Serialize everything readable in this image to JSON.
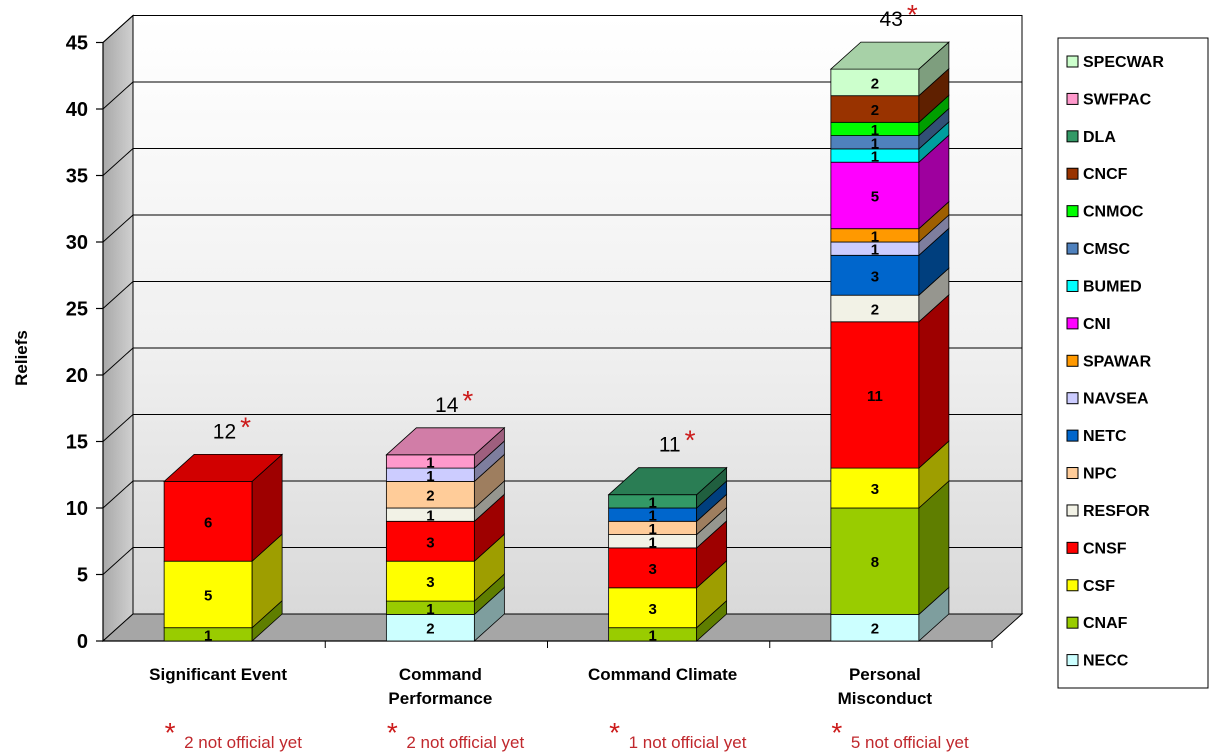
{
  "chart_data": {
    "type": "bar",
    "stacked": true,
    "three_d": true,
    "ylabel": "Reliefs",
    "ylim": [
      0,
      45
    ],
    "yticks": [
      0,
      5,
      10,
      15,
      20,
      25,
      30,
      35,
      40,
      45
    ],
    "grid": true,
    "legend_position": "right",
    "categories": [
      [
        "Significant Event"
      ],
      [
        "Command",
        "Performance"
      ],
      [
        "Command Climate"
      ],
      [
        "Personal",
        "Misconduct"
      ]
    ],
    "totals": [
      12,
      14,
      11,
      43
    ],
    "series": [
      {
        "name": "NECC",
        "color": "#ccffff",
        "values": [
          0,
          2,
          0,
          2
        ]
      },
      {
        "name": "CNAF",
        "color": "#99cc00",
        "values": [
          1,
          1,
          1,
          8
        ]
      },
      {
        "name": "CSF",
        "color": "#ffff00",
        "values": [
          5,
          3,
          3,
          3
        ]
      },
      {
        "name": "CNSF",
        "color": "#ff0000",
        "values": [
          6,
          3,
          3,
          11
        ]
      },
      {
        "name": "RESFOR",
        "color": "#f2f2e6",
        "values": [
          0,
          1,
          1,
          2
        ]
      },
      {
        "name": "NPC",
        "color": "#ffcc99",
        "values": [
          0,
          2,
          1,
          0
        ]
      },
      {
        "name": "NETC",
        "color": "#0066cc",
        "values": [
          0,
          0,
          1,
          3
        ]
      },
      {
        "name": "NAVSEA",
        "color": "#ccccff",
        "values": [
          0,
          1,
          0,
          1
        ]
      },
      {
        "name": "SPAWAR",
        "color": "#ff9900",
        "values": [
          0,
          0,
          0,
          1
        ]
      },
      {
        "name": "CNI",
        "color": "#ff00ff",
        "values": [
          0,
          0,
          0,
          5
        ]
      },
      {
        "name": "BUMED",
        "color": "#00ffff",
        "values": [
          0,
          0,
          0,
          1
        ]
      },
      {
        "name": "CMSC",
        "color": "#4f81bd",
        "values": [
          0,
          0,
          0,
          1
        ]
      },
      {
        "name": "CNMOC",
        "color": "#00ff00",
        "values": [
          0,
          0,
          0,
          1
        ]
      },
      {
        "name": "CNCF",
        "color": "#993300",
        "values": [
          0,
          0,
          0,
          2
        ]
      },
      {
        "name": "DLA",
        "color": "#339966",
        "values": [
          0,
          0,
          1,
          0
        ]
      },
      {
        "name": "SWFPAC",
        "color": "#ff99cc",
        "values": [
          0,
          1,
          0,
          0
        ]
      },
      {
        "name": "SPECWAR",
        "color": "#ccffcc",
        "values": [
          0,
          0,
          0,
          2
        ]
      }
    ],
    "notes": [
      "2 not official yet",
      "2  not official yet",
      "1 not official yet",
      "5 not official yet"
    ],
    "star": "*"
  }
}
